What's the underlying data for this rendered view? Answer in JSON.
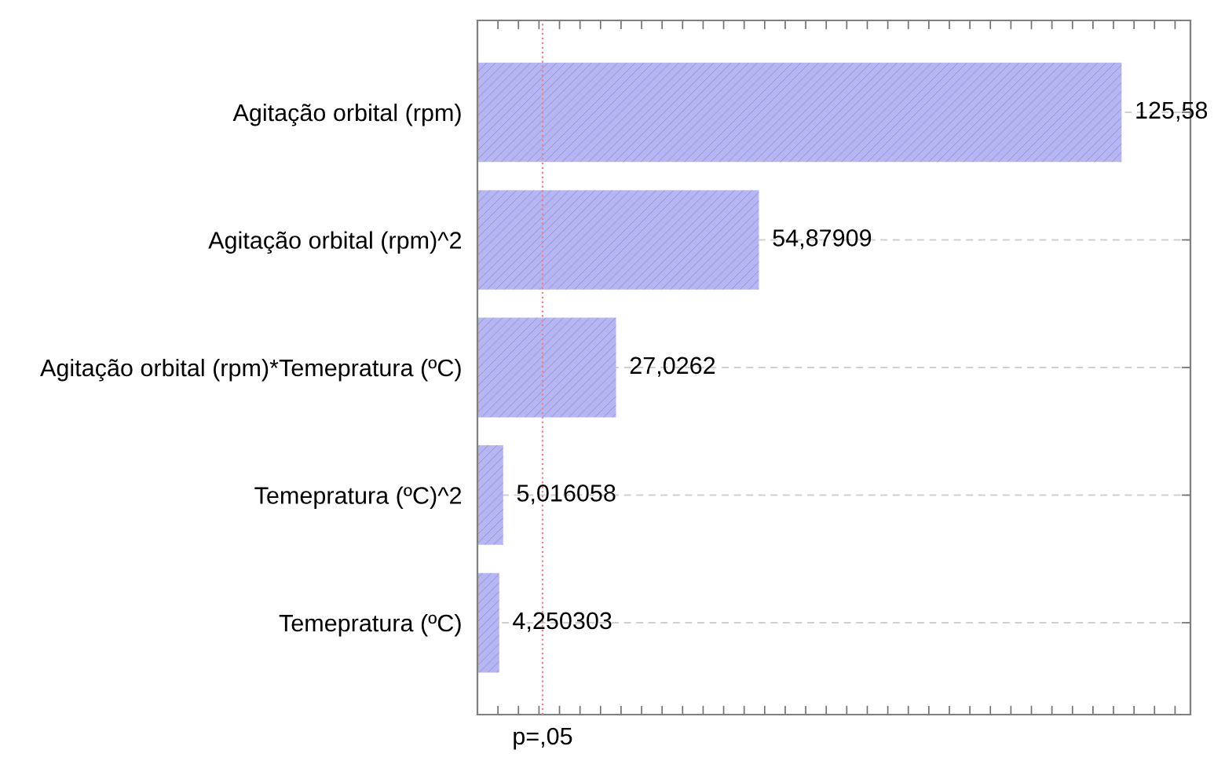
{
  "chart_data": {
    "type": "bar",
    "orientation": "horizontal",
    "categories": [
      "Agitação orbital (rpm)",
      "Agitação orbital (rpm)^2",
      "Agitação orbital (rpm)*Temepratura (ºC)",
      "Temepratura (ºC)^2",
      "Temepratura (ºC)"
    ],
    "values": [
      125.58,
      54.87909,
      27.0262,
      5.016058,
      4.250303
    ],
    "value_labels": [
      "125,58",
      "54,87909",
      "27,0262",
      "5,016058",
      "4,250303"
    ],
    "color": "#b6b6f4",
    "xlim": [
      0,
      139
    ],
    "xticks": [
      {
        "value": 0,
        "label": null
      },
      {
        "value": 4,
        "label": null
      },
      {
        "value": 8,
        "label": null
      },
      {
        "value": 12,
        "label": null
      },
      {
        "value": 16,
        "label": null
      },
      {
        "value": 20,
        "label": null
      },
      {
        "value": 24,
        "label": null
      },
      {
        "value": 28,
        "label": null
      },
      {
        "value": 32,
        "label": null
      },
      {
        "value": 36,
        "label": null
      },
      {
        "value": 40,
        "label": null
      },
      {
        "value": 44,
        "label": null
      },
      {
        "value": 48,
        "label": null
      },
      {
        "value": 52,
        "label": null
      },
      {
        "value": 56,
        "label": null
      },
      {
        "value": 60,
        "label": null
      },
      {
        "value": 64,
        "label": null
      },
      {
        "value": 68,
        "label": null
      },
      {
        "value": 72,
        "label": null
      },
      {
        "value": 76,
        "label": null
      },
      {
        "value": 80,
        "label": null
      },
      {
        "value": 84,
        "label": null
      },
      {
        "value": 88,
        "label": null
      },
      {
        "value": 92,
        "label": null
      },
      {
        "value": 96,
        "label": null
      },
      {
        "value": 100,
        "label": null
      },
      {
        "value": 104,
        "label": null
      },
      {
        "value": 108,
        "label": null
      },
      {
        "value": 112,
        "label": null
      },
      {
        "value": 116,
        "label": null
      },
      {
        "value": 120,
        "label": null
      },
      {
        "value": 124,
        "label": null
      },
      {
        "value": 128,
        "label": null
      },
      {
        "value": 132,
        "label": null
      },
      {
        "value": 136,
        "label": null
      }
    ],
    "grid": "y",
    "ref_lines": [
      {
        "axis": "x",
        "value": 12.7,
        "label": "p=,05",
        "color": "#f08080",
        "line_style": "dotted"
      }
    ]
  }
}
